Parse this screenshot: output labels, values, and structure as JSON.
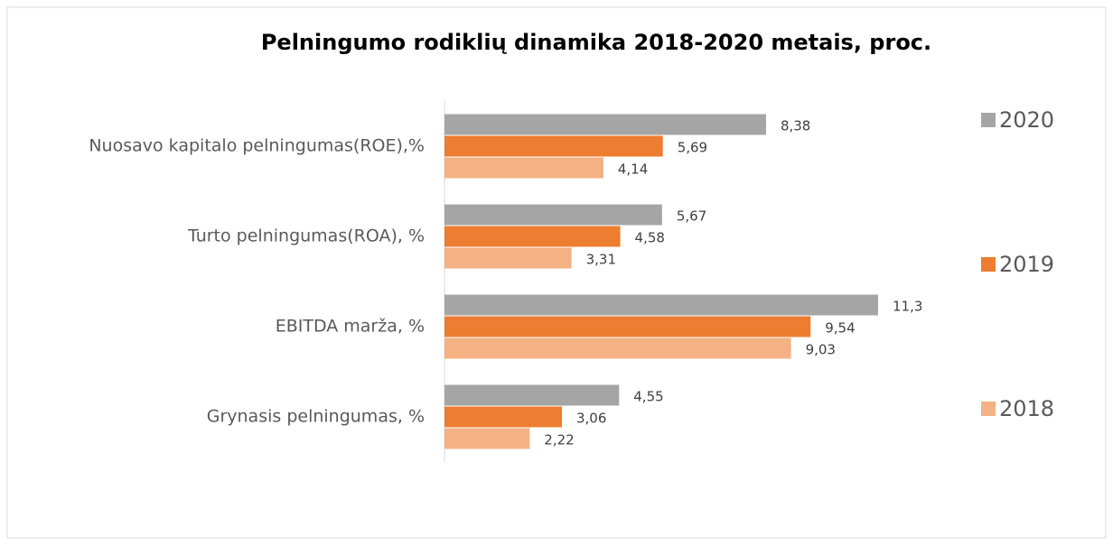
{
  "chart_data": {
    "type": "barh",
    "title": "Pelningumo rodiklių dinamika 2018-2020 metais, proc.",
    "categories": [
      "Nuosavo kapitalo pelningumas(ROE),%",
      "Turto pelningumas(ROA), %",
      "EBITDA marža, %",
      "Grynasis pelningumas, %"
    ],
    "series": [
      {
        "name": "2020",
        "color": "#a5a5a5",
        "values": [
          8.38,
          5.67,
          11.3,
          4.55
        ],
        "value_labels": [
          "8,38",
          "5,67",
          "11,3",
          "4,55"
        ]
      },
      {
        "name": "2019",
        "color": "#ed7d31",
        "values": [
          5.69,
          4.58,
          9.54,
          3.06
        ],
        "value_labels": [
          "5,69",
          "4,58",
          "9,54",
          "3,06"
        ]
      },
      {
        "name": "2018",
        "color": "#f4b183",
        "values": [
          4.14,
          3.31,
          9.03,
          2.22
        ],
        "value_labels": [
          "4,14",
          "3,31",
          "9,03",
          "2,22"
        ]
      }
    ],
    "legend": "right"
  }
}
